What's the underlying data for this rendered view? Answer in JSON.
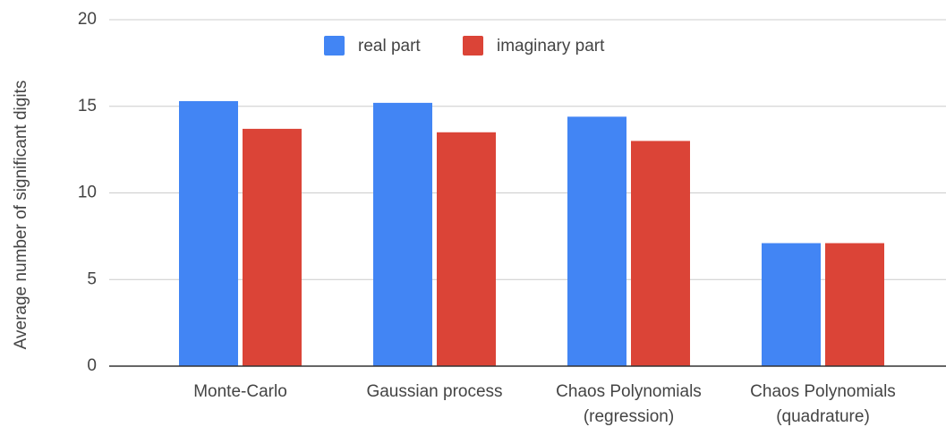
{
  "chart_data": {
    "type": "bar",
    "y_label": "Average number of significant digits",
    "categories": [
      "Monte-Carlo",
      "Gaussian process",
      "Chaos Polynomials\n(regression)",
      "Chaos Polynomials\n(quadrature)"
    ],
    "series": [
      {
        "name": "real part",
        "color": "#4285f4",
        "values": [
          15.3,
          15.2,
          14.4,
          7.1
        ]
      },
      {
        "name": "imaginary part",
        "color": "#db4437",
        "values": [
          13.7,
          13.5,
          13.0,
          7.1
        ]
      }
    ],
    "ylim": [
      0,
      20
    ],
    "yticks": [
      0,
      5,
      10,
      15,
      20
    ],
    "grid": true,
    "legend": "top"
  }
}
